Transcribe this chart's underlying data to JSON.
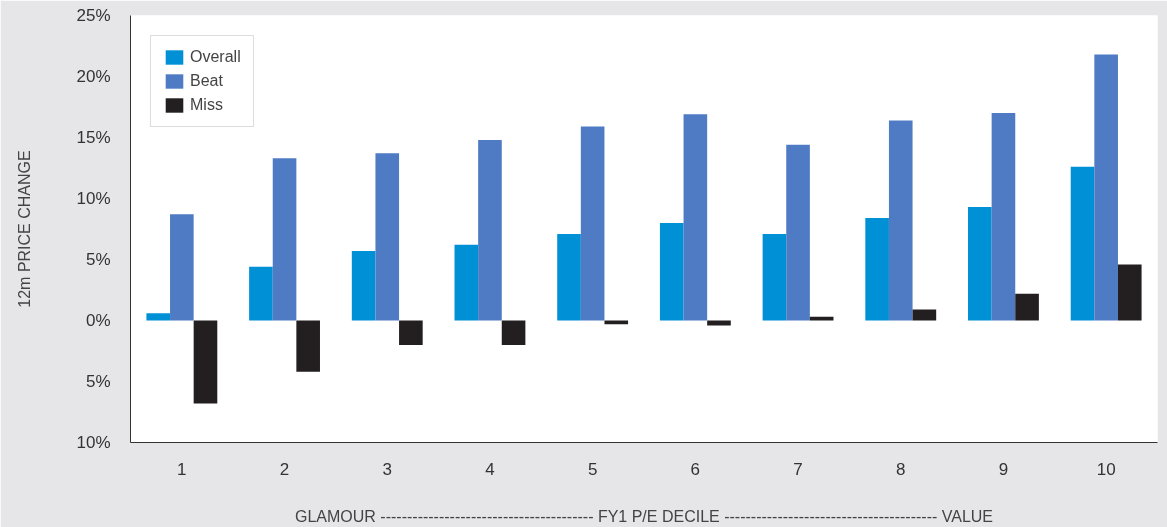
{
  "chart_data": {
    "type": "bar",
    "xlabel": "GLAMOUR ---------------------------------------- FY1 P/E DECILE ---------------------------------------- VALUE",
    "ylabel": "12m PRICE CHANGE",
    "categories": [
      "1",
      "2",
      "3",
      "4",
      "5",
      "6",
      "7",
      "8",
      "9",
      "10"
    ],
    "series": [
      {
        "name": "Overall",
        "color": "#0090d6",
        "values": [
          0.6,
          4.4,
          5.7,
          6.2,
          7.1,
          8.0,
          7.1,
          8.4,
          9.3,
          12.6
        ]
      },
      {
        "name": "Beat",
        "color": "#4f7bc4",
        "values": [
          8.7,
          13.3,
          13.7,
          14.8,
          15.9,
          16.9,
          14.4,
          16.4,
          17.0,
          21.8
        ]
      },
      {
        "name": "Miss",
        "color": "#231f20",
        "values": [
          -6.8,
          -4.2,
          -2.0,
          -2.0,
          -0.3,
          -0.4,
          0.3,
          0.9,
          2.2,
          4.6
        ]
      }
    ],
    "ylim": [
      -10,
      25
    ],
    "yticks": [
      {
        "value": -10,
        "label": "10%"
      },
      {
        "value": -5,
        "label": "5%"
      },
      {
        "value": 0,
        "label": "0%"
      },
      {
        "value": 5,
        "label": "5%"
      },
      {
        "value": 10,
        "label": "10%"
      },
      {
        "value": 15,
        "label": "15%"
      },
      {
        "value": 20,
        "label": "20%"
      },
      {
        "value": 25,
        "label": "25%"
      }
    ],
    "grid": false,
    "legend": "top left"
  }
}
